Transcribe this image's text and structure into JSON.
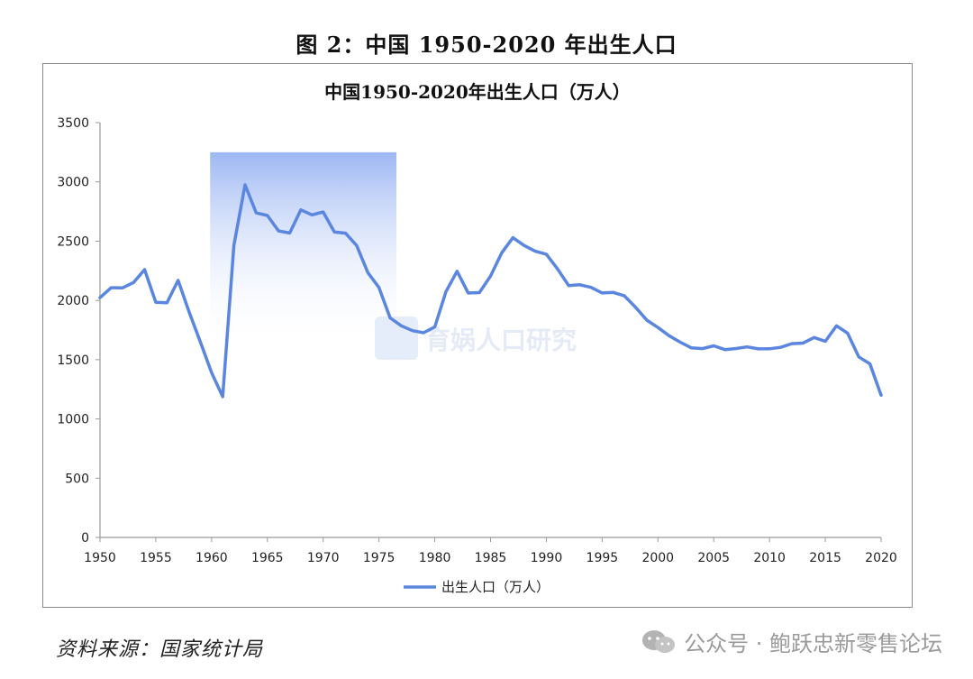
{
  "figure_caption": "图 2：中国 1950-2020 年出生人口",
  "source_note": "资料来源：国家统计局",
  "wechat_mark": {
    "icon": "wechat-icon",
    "text": "公众号 · 鲍跃忠新零售论坛"
  },
  "watermark_text": "育娲人口研究",
  "colors": {
    "series": "#5b86e0",
    "highlight_top": "#9db7f3",
    "axis": "#9a9a9a",
    "frame": "#8a8a8a"
  },
  "chart_data": {
    "type": "line",
    "title": "中国1950-2020年出生人口（万人）",
    "xlabel": "",
    "ylabel": "",
    "xlim": [
      1950,
      2020
    ],
    "ylim": [
      0,
      3500
    ],
    "x_ticks": [
      "1950",
      "1955",
      "1960",
      "1965",
      "1970",
      "1975",
      "1980",
      "1985",
      "1990",
      "1995",
      "2000",
      "2005",
      "2010",
      "2015",
      "2020"
    ],
    "y_ticks": [
      "0",
      "500",
      "1000",
      "1500",
      "2000",
      "2500",
      "3000",
      "3500"
    ],
    "grid": false,
    "legend_position": "bottom-center",
    "highlight_range": [
      1961,
      1976
    ],
    "series": [
      {
        "name": "出生人口（万人）",
        "x": [
          1950,
          1951,
          1952,
          1953,
          1954,
          1955,
          1956,
          1957,
          1958,
          1959,
          1960,
          1961,
          1962,
          1963,
          1964,
          1965,
          1966,
          1967,
          1968,
          1969,
          1970,
          1971,
          1972,
          1973,
          1974,
          1975,
          1976,
          1977,
          1978,
          1979,
          1980,
          1981,
          1982,
          1983,
          1984,
          1985,
          1986,
          1987,
          1988,
          1989,
          1990,
          1991,
          1992,
          1993,
          1994,
          1995,
          1996,
          1997,
          1998,
          1999,
          2000,
          2001,
          2002,
          2003,
          2004,
          2005,
          2006,
          2007,
          2008,
          2009,
          2010,
          2011,
          2012,
          2013,
          2014,
          2015,
          2016,
          2017,
          2018,
          2019,
          2020
        ],
        "values": [
          2023,
          2107,
          2105,
          2151,
          2260,
          1984,
          1980,
          2169,
          1898,
          1647,
          1389,
          1188,
          2464,
          2975,
          2738,
          2716,
          2586,
          2569,
          2764,
          2722,
          2746,
          2578,
          2567,
          2463,
          2235,
          2109,
          1853,
          1786,
          1745,
          1727,
          1776,
          2074,
          2246,
          2063,
          2066,
          2206,
          2401,
          2529,
          2464,
          2415,
          2390,
          2266,
          2125,
          2132,
          2110,
          2063,
          2067,
          2038,
          1942,
          1834,
          1771,
          1702,
          1647,
          1599,
          1593,
          1617,
          1585,
          1594,
          1608,
          1591,
          1592,
          1604,
          1635,
          1640,
          1687,
          1655,
          1786,
          1723,
          1523,
          1465,
          1200
        ]
      }
    ]
  }
}
